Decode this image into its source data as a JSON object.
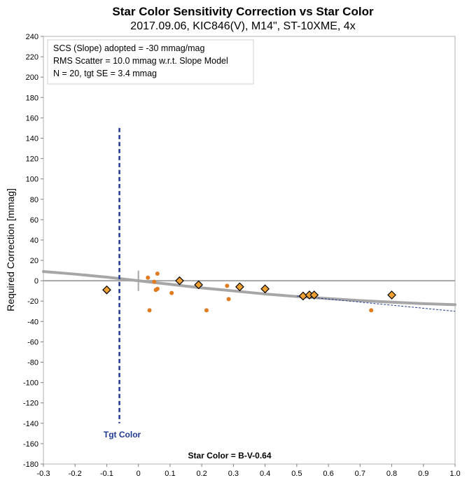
{
  "chart_data": {
    "type": "scatter",
    "title": "Star Color Sensitivity Correction vs Star Color",
    "subtitle": "2017.09.06, KIC846(V), M14\", ST-10XME, 4x",
    "xlabel": "Star Color = B-V-0.64",
    "ylabel": "Required Correction [mmag]",
    "xlim": [
      -0.3,
      1.0
    ],
    "ylim": [
      -180,
      240
    ],
    "x_ticks": [
      "-0.3",
      "-0.2",
      "-0.1",
      "0",
      "0.1",
      "0.2",
      "0.3",
      "0.4",
      "0.5",
      "0.6",
      "0.7",
      "0.8",
      "0.9",
      "1.0"
    ],
    "y_ticks": [
      "-180",
      "-160",
      "-140",
      "-120",
      "-100",
      "-80",
      "-60",
      "-40",
      "-20",
      "0",
      "20",
      "40",
      "60",
      "80",
      "100",
      "120",
      "140",
      "160",
      "180",
      "200",
      "220",
      "240"
    ],
    "info_box": [
      "SCS (Slope) adopted  =  -30 mmag/mag",
      "RMS Scatter = 10.0 mmag w.r.t. Slope Model",
      "N = 20,  tgt SE = 3.4 mmag"
    ],
    "target_color": {
      "label": "Tgt Color",
      "x": -0.06,
      "y_range": [
        -140,
        150
      ]
    },
    "series": [
      {
        "marker": "diamond",
        "color": "#f0a030",
        "x": [
          -0.1,
          0.13,
          0.19,
          0.32,
          0.4,
          0.52,
          0.54,
          0.555,
          0.8
        ],
        "y": [
          -9,
          0,
          -4,
          -6,
          -8,
          -15,
          -14,
          -14,
          -14
        ]
      },
      {
        "marker": "dot",
        "color": "#e07b20",
        "x": [
          0.03,
          0.035,
          0.05,
          0.055,
          0.06,
          0.06,
          0.105,
          0.215,
          0.28,
          0.285,
          0.735
        ],
        "y": [
          3,
          -29,
          -1,
          -9,
          -8,
          7,
          -12,
          -29,
          -5,
          -18,
          -29
        ]
      }
    ],
    "slope_line": {
      "x": [
        0.5,
        1.0
      ],
      "y": [
        -15,
        -30
      ],
      "color": "#1f3a93",
      "style": "dashed"
    },
    "fit_curve": {
      "x": [
        -0.3,
        -0.2,
        -0.1,
        0.0,
        0.1,
        0.2,
        0.3,
        0.4,
        0.5,
        0.6,
        0.7,
        0.8,
        0.9,
        1.0
      ],
      "y": [
        9,
        6.5,
        3.5,
        0,
        -3.5,
        -7,
        -10,
        -13,
        -15.5,
        -17.5,
        -19.5,
        -21,
        -22.5,
        -23.5
      ],
      "color": "#a6a6a6"
    },
    "zero_line_color": "#a6a6a6",
    "grid": false,
    "legend": "none"
  }
}
